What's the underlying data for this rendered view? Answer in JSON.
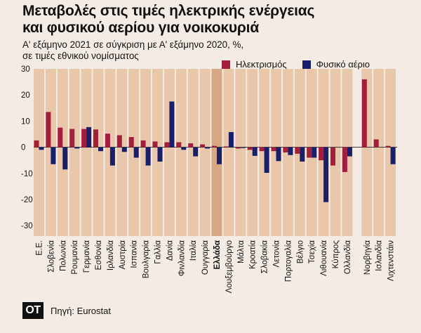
{
  "header": {
    "title_line1": "Μεταβολές στις τιμές ηλεκτρικής ενέργειας",
    "title_line2": "και φυσικού αερίου για νοικοκυριά",
    "subtitle_line1": "Α' εξάμηνο 2021 σε σύγκριση με Α' εξάμηνο 2020, %,",
    "subtitle_line2": "σε τιμές εθνικού νομίσματος"
  },
  "footer": {
    "logo_text": "ΟΤ",
    "source": "Πηγή: Eurostat"
  },
  "colors": {
    "electricity": "#a31f3c",
    "gas": "#1a1f6b",
    "band": "#e8c7ab",
    "highlight_band": "#d6a984",
    "background": "#f4ece4"
  },
  "chart_data": {
    "type": "bar",
    "title": "Μεταβολές στις τιμές ηλεκτρικής ενέργειας και φυσικού αερίου για νοικοκυριά",
    "subtitle": "Α' εξάμηνο 2021 σε σύγκριση με Α' εξάμηνο 2020, %, σε τιμές εθνικού νομίσματος",
    "categories": [
      "Ε.Ε.",
      "Σλοβενία",
      "Πολωνία",
      "Ρουμανία",
      "Γερμανία",
      "Εσθονία",
      "Ιρλανδία",
      "Αυστρία",
      "Ισπανία",
      "Βουλγαρία",
      "Γαλλία",
      "Δανία",
      "Φινλανδία",
      "Ιταλία",
      "Ουγγαρία",
      "Ελλάδα",
      "Λουξεμβούργο",
      "Μάλτα",
      "Κροατία",
      "Σλοβακία",
      "Λετονία",
      "Πορτογαλία",
      "Βέλγιο",
      "Τσεχία",
      "Λιθουανία",
      "Κύπρος",
      "Ολλανδία",
      "Νορβηγία",
      "Ισλανδία",
      "Λιχτενστάιν"
    ],
    "gap_after_index": 26,
    "highlight": "Ελλάδα",
    "series": [
      {
        "name": "Ηλεκτρισμός",
        "values": [
          2.6,
          13.5,
          7.5,
          7.0,
          7.0,
          6.8,
          5.2,
          4.6,
          3.9,
          2.6,
          2.2,
          1.9,
          1.9,
          1.5,
          1.1,
          0.5,
          0.3,
          -0.5,
          -1.0,
          -1.5,
          -1.5,
          -2.0,
          -2.5,
          -4.0,
          -5.0,
          -7.0,
          -9.5,
          26.0,
          3.0,
          0.5
        ]
      },
      {
        "name": "Φυσικό αέριο",
        "values": [
          -1.0,
          -6.5,
          -8.5,
          -0.5,
          7.7,
          -1.5,
          -7.0,
          -1.8,
          -4.0,
          -7.0,
          -5.5,
          17.5,
          -1.0,
          -3.5,
          -0.5,
          -6.5,
          5.8,
          -0.3,
          -3.3,
          -9.8,
          -5.3,
          -3.0,
          -5.5,
          -4.0,
          -21.0,
          null,
          -3.5,
          null,
          null,
          -6.5
        ]
      }
    ],
    "ylim": [
      -34,
      30
    ],
    "yticks": [
      30,
      20,
      10,
      0,
      -10,
      -20,
      -30
    ],
    "xlabel": "",
    "ylabel": "",
    "grid": false,
    "legend_position": "top-right"
  }
}
